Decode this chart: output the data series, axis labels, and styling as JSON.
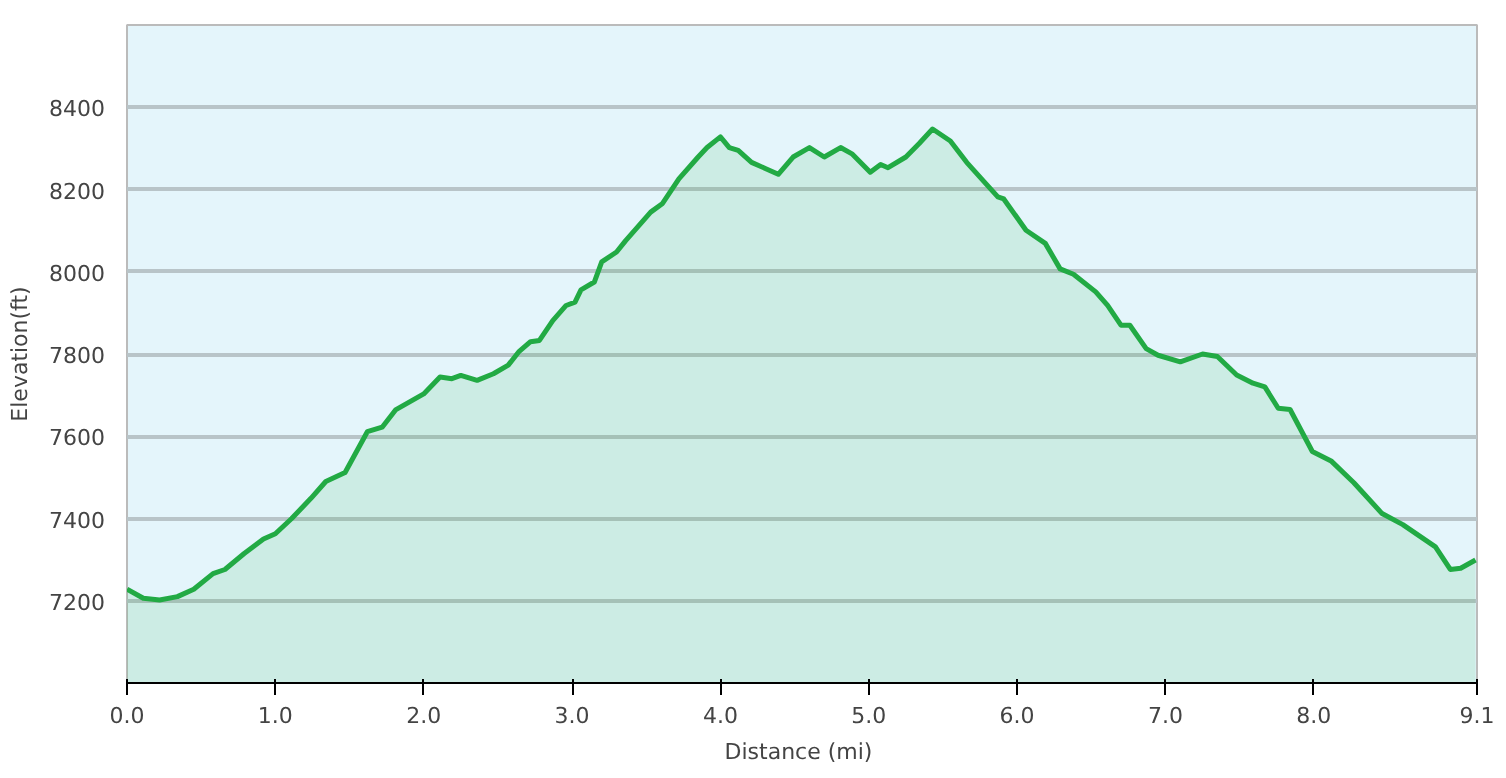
{
  "chart_data": {
    "type": "area",
    "xlabel": "Distance  (mi)",
    "ylabel": "Elevation(ft)",
    "xlim": [
      0,
      9.1
    ],
    "ylim": [
      7000,
      8600
    ],
    "xticks": [
      {
        "value": 0,
        "label": "0.0"
      },
      {
        "value": 1,
        "label": "1.0"
      },
      {
        "value": 2,
        "label": "2.0"
      },
      {
        "value": 3,
        "label": "3.0"
      },
      {
        "value": 4,
        "label": "4.0"
      },
      {
        "value": 5,
        "label": "5.0"
      },
      {
        "value": 6,
        "label": "6.0"
      },
      {
        "value": 7,
        "label": "7.0"
      },
      {
        "value": 8,
        "label": "8.0"
      },
      {
        "value": 9.1,
        "label": "9.1"
      }
    ],
    "yticks": [
      7200,
      7400,
      7600,
      7800,
      8000,
      8200,
      8400
    ],
    "grid": "y",
    "series": [
      {
        "color": "#22aa44",
        "x": [
          0.0,
          0.11,
          0.22,
          0.34,
          0.45,
          0.58,
          0.66,
          0.79,
          0.92,
          1.0,
          1.11,
          1.24,
          1.34,
          1.47,
          1.62,
          1.72,
          1.81,
          2.0,
          2.11,
          2.19,
          2.25,
          2.36,
          2.47,
          2.57,
          2.64,
          2.72,
          2.78,
          2.87,
          2.96,
          3.02,
          3.06,
          3.15,
          3.2,
          3.3,
          3.36,
          3.53,
          3.61,
          3.72,
          3.85,
          3.91,
          4.0,
          4.06,
          4.12,
          4.21,
          4.31,
          4.39,
          4.49,
          4.6,
          4.7,
          4.81,
          4.89,
          5.01,
          5.08,
          5.13,
          5.25,
          5.34,
          5.43,
          5.55,
          5.66,
          5.78,
          5.87,
          5.91,
          6.06,
          6.19,
          6.29,
          6.38,
          6.53,
          6.61,
          6.7,
          6.76,
          6.87,
          6.95,
          7.1,
          7.25,
          7.35,
          7.48,
          7.59,
          7.67,
          7.76,
          7.84,
          7.99,
          8.12,
          8.27,
          8.46,
          8.6,
          8.82,
          8.92,
          8.99,
          9.09
        ],
        "values": [
          7228,
          7206,
          7202,
          7210,
          7228,
          7266,
          7276,
          7315,
          7350,
          7363,
          7400,
          7449,
          7490,
          7512,
          7611,
          7622,
          7664,
          7703,
          7744,
          7740,
          7748,
          7736,
          7752,
          7773,
          7805,
          7830,
          7833,
          7881,
          7918,
          7926,
          7956,
          7975,
          8024,
          8048,
          8075,
          8145,
          8166,
          8226,
          8279,
          8302,
          8328,
          8302,
          8295,
          8266,
          8250,
          8237,
          8279,
          8302,
          8279,
          8302,
          8286,
          8242,
          8261,
          8253,
          8279,
          8312,
          8347,
          8318,
          8266,
          8218,
          8182,
          8177,
          8101,
          8069,
          8007,
          7994,
          7951,
          7918,
          7870,
          7870,
          7813,
          7797,
          7781,
          7800,
          7794,
          7749,
          7729,
          7720,
          7668,
          7665,
          7563,
          7539,
          7487,
          7412,
          7385,
          7331,
          7276,
          7279,
          7299
        ]
      }
    ]
  }
}
